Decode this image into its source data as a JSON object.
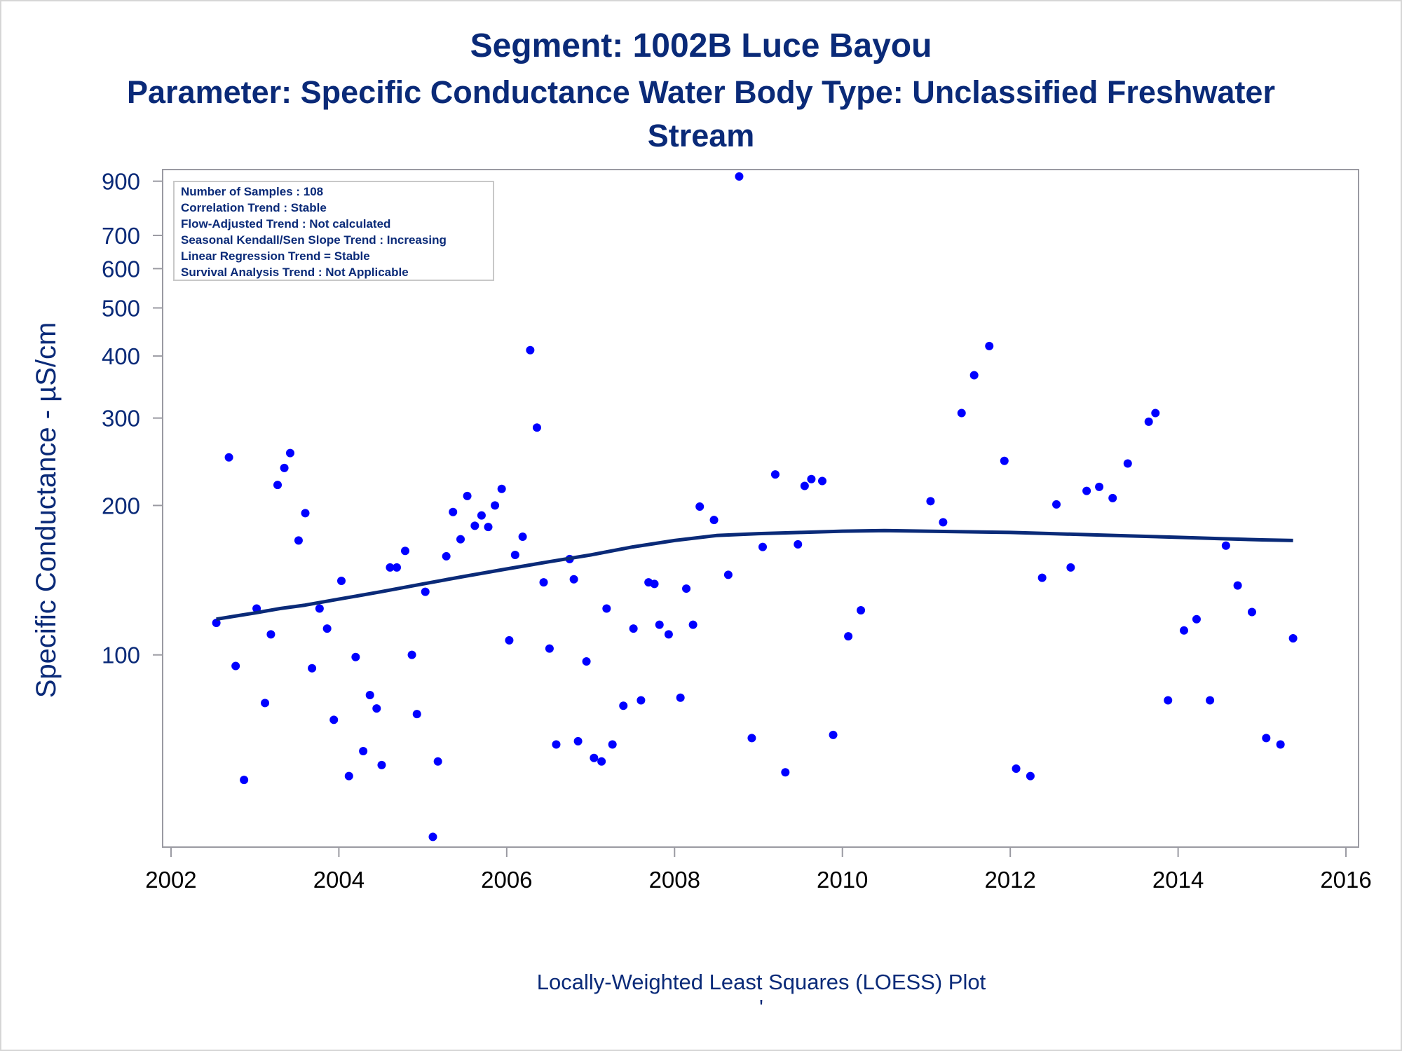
{
  "titles": {
    "line1": "Segment: 1002B  Luce Bayou",
    "line2": "Parameter: Specific Conductance   Water Body Type: Unclassified Freshwater",
    "line3": "Stream"
  },
  "footnote": "Locally-Weighted Least Squares (LOESS) Plot",
  "footnote_mark": "'",
  "colors": {
    "text": "#0a2a78",
    "points": "#0000ff",
    "loess": "#0a2a78",
    "frame": "#9a9aa2"
  },
  "chart_data": {
    "type": "scatter",
    "ylabel": "Specific Conductance -  µS/cm",
    "xlabel": "",
    "y_scale": "log",
    "xlim": [
      2001.9,
      2016.15
    ],
    "ylim": [
      41,
      950
    ],
    "x_ticks": [
      2002,
      2004,
      2006,
      2008,
      2010,
      2012,
      2014,
      2016
    ],
    "y_ticks": [
      100,
      200,
      300,
      400,
      500,
      600,
      700,
      900
    ],
    "legend_placement": "top-left",
    "legend_lines": [
      "Number of Samples : 108",
      "Correlation Trend : Stable",
      "Flow-Adjusted Trend : Not calculated",
      "Seasonal Kendall/Sen Slope Trend : Increasing",
      "Linear Regression Trend = Stable",
      "Survival Analysis Trend : Not Applicable"
    ],
    "series": [
      {
        "type": "scatter",
        "points": [
          [
            2002.54,
            116
          ],
          [
            2002.69,
            250
          ],
          [
            2002.77,
            95
          ],
          [
            2002.87,
            56
          ],
          [
            2003.02,
            124
          ],
          [
            2003.12,
            80
          ],
          [
            2003.19,
            110
          ],
          [
            2003.27,
            220
          ],
          [
            2003.35,
            238
          ],
          [
            2003.42,
            255
          ],
          [
            2003.52,
            170
          ],
          [
            2003.6,
            193
          ],
          [
            2003.68,
            94
          ],
          [
            2003.77,
            124
          ],
          [
            2003.86,
            113
          ],
          [
            2003.94,
            74
          ],
          [
            2004.03,
            141
          ],
          [
            2004.12,
            57
          ],
          [
            2004.2,
            99
          ],
          [
            2004.29,
            64
          ],
          [
            2004.37,
            83
          ],
          [
            2004.45,
            78
          ],
          [
            2004.51,
            60
          ],
          [
            2004.61,
            150
          ],
          [
            2004.69,
            150
          ],
          [
            2004.79,
            162
          ],
          [
            2004.87,
            100
          ],
          [
            2004.93,
            76
          ],
          [
            2005.03,
            134
          ],
          [
            2005.12,
            43
          ],
          [
            2005.18,
            61
          ],
          [
            2005.28,
            158
          ],
          [
            2005.36,
            194
          ],
          [
            2005.45,
            171
          ],
          [
            2005.53,
            209
          ],
          [
            2005.62,
            182
          ],
          [
            2005.7,
            191
          ],
          [
            2005.78,
            181
          ],
          [
            2005.86,
            200
          ],
          [
            2005.94,
            216
          ],
          [
            2006.03,
            107
          ],
          [
            2006.1,
            159
          ],
          [
            2006.19,
            173
          ],
          [
            2006.28,
            411
          ],
          [
            2006.36,
            287
          ],
          [
            2006.44,
            140
          ],
          [
            2006.51,
            103
          ],
          [
            2006.59,
            66
          ],
          [
            2006.75,
            156
          ],
          [
            2006.8,
            142
          ],
          [
            2006.85,
            67
          ],
          [
            2006.95,
            97
          ],
          [
            2007.04,
            62
          ],
          [
            2007.13,
            61
          ],
          [
            2007.19,
            124
          ],
          [
            2007.26,
            66
          ],
          [
            2007.39,
            79
          ],
          [
            2007.51,
            113
          ],
          [
            2007.6,
            81
          ],
          [
            2007.69,
            140
          ],
          [
            2007.76,
            139
          ],
          [
            2007.82,
            115
          ],
          [
            2007.93,
            110
          ],
          [
            2008.07,
            82
          ],
          [
            2008.14,
            136
          ],
          [
            2008.22,
            115
          ],
          [
            2008.3,
            199
          ],
          [
            2008.47,
            187
          ],
          [
            2008.64,
            145
          ],
          [
            2008.77,
            920
          ],
          [
            2008.92,
            68
          ],
          [
            2009.05,
            165
          ],
          [
            2009.2,
            231
          ],
          [
            2009.32,
            58
          ],
          [
            2009.47,
            167
          ],
          [
            2009.55,
            219
          ],
          [
            2009.63,
            226
          ],
          [
            2009.76,
            224
          ],
          [
            2009.89,
            69
          ],
          [
            2010.07,
            109
          ],
          [
            2010.22,
            123
          ],
          [
            2011.05,
            204
          ],
          [
            2011.2,
            185
          ],
          [
            2011.42,
            307
          ],
          [
            2011.57,
            366
          ],
          [
            2011.75,
            419
          ],
          [
            2011.93,
            246
          ],
          [
            2012.07,
            59
          ],
          [
            2012.24,
            57
          ],
          [
            2012.38,
            143
          ],
          [
            2012.55,
            201
          ],
          [
            2012.72,
            150
          ],
          [
            2012.91,
            214
          ],
          [
            2013.06,
            218
          ],
          [
            2013.22,
            207
          ],
          [
            2013.4,
            243
          ],
          [
            2013.65,
            295
          ],
          [
            2013.73,
            307
          ],
          [
            2013.88,
            81
          ],
          [
            2014.07,
            112
          ],
          [
            2014.22,
            118
          ],
          [
            2014.38,
            81
          ],
          [
            2014.57,
            166
          ],
          [
            2014.71,
            138
          ],
          [
            2014.88,
            122
          ],
          [
            2015.05,
            68
          ],
          [
            2015.22,
            66
          ],
          [
            2015.37,
            108
          ]
        ]
      },
      {
        "type": "line",
        "name": "LOESS",
        "points": [
          [
            2002.54,
            118
          ],
          [
            2002.8,
            120
          ],
          [
            2003.0,
            121.5
          ],
          [
            2003.3,
            124
          ],
          [
            2003.6,
            126
          ],
          [
            2004.0,
            129.5
          ],
          [
            2004.5,
            134
          ],
          [
            2005.0,
            139
          ],
          [
            2005.5,
            144
          ],
          [
            2006.0,
            149
          ],
          [
            2006.5,
            154
          ],
          [
            2007.0,
            159
          ],
          [
            2007.5,
            165
          ],
          [
            2008.0,
            170
          ],
          [
            2008.5,
            174
          ],
          [
            2009.0,
            175.5
          ],
          [
            2009.5,
            176.5
          ],
          [
            2010.0,
            177.5
          ],
          [
            2010.5,
            178
          ],
          [
            2011.0,
            177.5
          ],
          [
            2011.5,
            177
          ],
          [
            2012.0,
            176.5
          ],
          [
            2012.5,
            175.5
          ],
          [
            2013.0,
            174.5
          ],
          [
            2013.5,
            173.5
          ],
          [
            2014.0,
            172.5
          ],
          [
            2014.5,
            171.5
          ],
          [
            2015.0,
            170.5
          ],
          [
            2015.37,
            170
          ]
        ]
      }
    ]
  }
}
